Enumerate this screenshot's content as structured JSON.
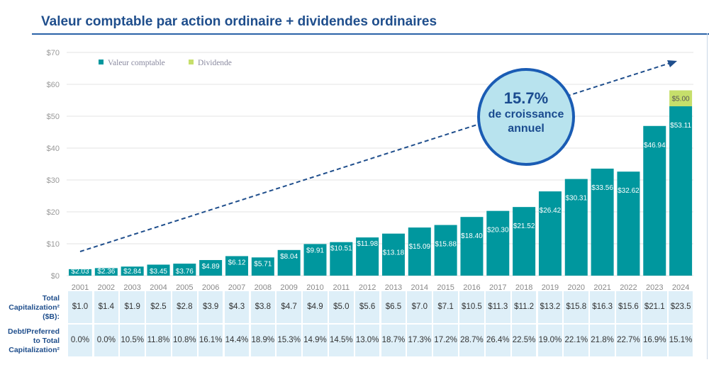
{
  "title": "Valeur comptable par action ordinaire + dividendes ordinaires",
  "callout": {
    "value": "15.7%",
    "text_line1": "de croissance",
    "text_line2": "annuel"
  },
  "colors": {
    "book_value": "#00979e",
    "dividend": "#c6df6b",
    "title": "#1f4e8c",
    "arrow": "#1f4e8c"
  },
  "chart_data": {
    "type": "bar",
    "stacked": true,
    "categories": [
      "2001",
      "2002",
      "2003",
      "2004",
      "2005",
      "2006",
      "2007",
      "2008",
      "2009",
      "2010",
      "2011",
      "2012",
      "2013",
      "2014",
      "2015",
      "2016",
      "2017",
      "2018",
      "2019",
      "2020",
      "2021",
      "2022",
      "2023",
      "2024"
    ],
    "series": [
      {
        "name": "Valeur comptable",
        "values": [
          2.03,
          2.36,
          2.84,
          3.45,
          3.76,
          4.89,
          6.12,
          5.71,
          8.04,
          9.91,
          10.51,
          11.98,
          13.18,
          15.09,
          15.88,
          18.4,
          20.3,
          21.52,
          26.42,
          30.31,
          33.56,
          32.62,
          46.94,
          53.11
        ],
        "labels": [
          "$2.03",
          "$2.36",
          "$2.84",
          "$3.45",
          "$3.76",
          "$4.89",
          "$6.12",
          "$5.71",
          "$8.04",
          "$9.91",
          "$10.51",
          "$11.98",
          "$13.18",
          "$15.09",
          "$15.88",
          "$18.40",
          "$20.30",
          "$21.52",
          "$26.42",
          "$30.31",
          "$33.56",
          "$32.62",
          "$46.94",
          "$53.11"
        ]
      },
      {
        "name": "Dividende",
        "values": [
          0,
          0,
          0,
          0,
          0,
          0,
          0,
          0,
          0,
          0,
          0,
          0,
          0,
          0,
          0,
          0,
          0,
          0,
          0,
          0,
          0,
          0,
          0,
          5.0
        ],
        "labels": [
          "",
          "",
          "",
          "",
          "",
          "",
          "",
          "",
          "",
          "",
          "",
          "",
          "",
          "",
          "",
          "",
          "",
          "",
          "",
          "",
          "",
          "",
          "",
          "$5.00"
        ]
      }
    ],
    "ylim": [
      0,
      70
    ],
    "yticks": [
      "$0",
      "$10",
      "$20",
      "$30",
      "$40",
      "$50",
      "$60",
      "$70"
    ],
    "grid": true,
    "legend": "top-left",
    "trend_arrow": true
  },
  "table": {
    "rows": [
      {
        "label_lines": [
          "Total",
          "Capitalization²",
          "($B):"
        ],
        "values": [
          "$1.0",
          "$1.4",
          "$1.9",
          "$2.5",
          "$2.8",
          "$3.9",
          "$4.3",
          "$3.8",
          "$4.7",
          "$4.9",
          "$5.0",
          "$5.6",
          "$6.5",
          "$7.0",
          "$7.1",
          "$10.5",
          "$11.3",
          "$11.2",
          "$13.2",
          "$15.8",
          "$16.3",
          "$15.6",
          "$21.1",
          "$23.5"
        ]
      },
      {
        "label_lines": [
          "Debt/Preferred",
          "to Total",
          "Capitalization²"
        ],
        "values": [
          "0.0%",
          "0.0%",
          "10.5%",
          "11.8%",
          "10.8%",
          "16.1%",
          "14.4%",
          "18.9%",
          "15.3%",
          "14.9%",
          "14.5%",
          "13.0%",
          "18.7%",
          "17.3%",
          "17.2%",
          "28.7%",
          "26.4%",
          "22.5%",
          "19.0%",
          "22.1%",
          "21.8%",
          "22.7%",
          "16.9%",
          "15.1%"
        ]
      }
    ]
  }
}
